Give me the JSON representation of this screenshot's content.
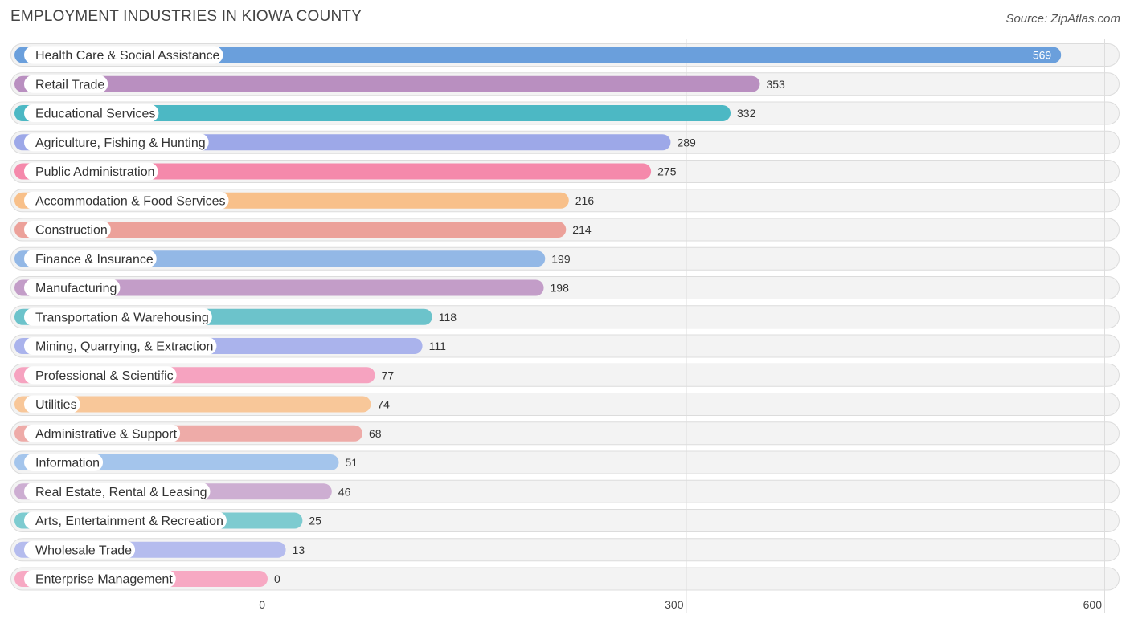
{
  "header": {
    "title": "EMPLOYMENT INDUSTRIES IN KIOWA COUNTY",
    "source": "Source: ZipAtlas.com"
  },
  "chart_data": {
    "type": "bar",
    "orientation": "horizontal",
    "title": "EMPLOYMENT INDUSTRIES IN KIOWA COUNTY",
    "xlabel": "",
    "ylabel": "",
    "xlim": [
      0,
      600
    ],
    "xticks": [
      0,
      300,
      600
    ],
    "grid": true,
    "categories": [
      "Health Care & Social Assistance",
      "Retail Trade",
      "Educational Services",
      "Agriculture, Fishing & Hunting",
      "Public Administration",
      "Accommodation & Food Services",
      "Construction",
      "Finance & Insurance",
      "Manufacturing",
      "Transportation & Warehousing",
      "Mining, Quarrying, & Extraction",
      "Professional & Scientific",
      "Utilities",
      "Administrative & Support",
      "Information",
      "Real Estate, Rental & Leasing",
      "Arts, Entertainment & Recreation",
      "Wholesale Trade",
      "Enterprise Management"
    ],
    "values": [
      569,
      353,
      332,
      289,
      275,
      216,
      214,
      199,
      198,
      118,
      111,
      77,
      74,
      68,
      51,
      46,
      25,
      13,
      0
    ],
    "colors": [
      "#6a9fdc",
      "#b98fc0",
      "#4cb8c4",
      "#9da8e8",
      "#f589ab",
      "#f8c08a",
      "#eca19a",
      "#93b8e6",
      "#c39dc8",
      "#6cc3cb",
      "#aab3ec",
      "#f6a3c0",
      "#f8c799",
      "#eeaba8",
      "#a4c5ec",
      "#cdaed2",
      "#7dcbd0",
      "#b5bcee",
      "#f7a9c3"
    ]
  }
}
